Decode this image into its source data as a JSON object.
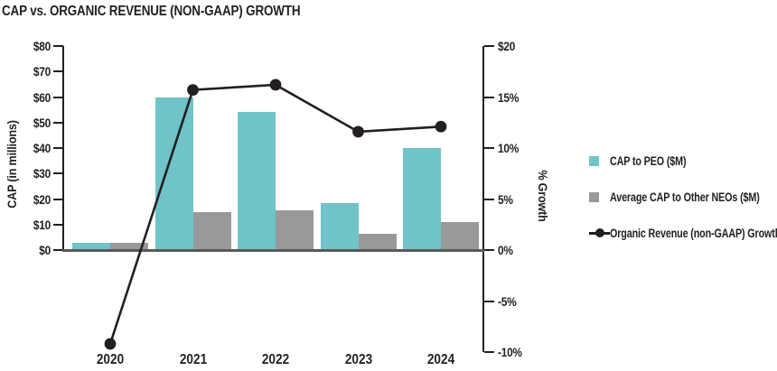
{
  "title": "CAP vs. ORGANIC REVENUE (NON-GAAP) GROWTH",
  "chart_data": {
    "type": "combo-bar-line",
    "title": "CAP vs. ORGANIC REVENUE (NON-GAAP) GROWTH",
    "categories": [
      "2020",
      "2021",
      "2022",
      "2023",
      "2024"
    ],
    "series": [
      {
        "name": "CAP to PEO ($M)",
        "type": "bar",
        "axis": "left",
        "color": "#70C3C7",
        "values": [
          2.7,
          60,
          54,
          18.5,
          40
        ]
      },
      {
        "name": "Average CAP to Other NEOs ($M)",
        "type": "bar",
        "axis": "left",
        "color": "#98999B",
        "values": [
          3,
          15,
          15.5,
          6.5,
          11
        ]
      },
      {
        "name": "Organic Revenue (non-GAAP) Growth",
        "type": "line",
        "axis": "right",
        "color": "#231F20",
        "values": [
          -9.2,
          15.7,
          16.2,
          11.6,
          12.1
        ]
      }
    ],
    "left_axis": {
      "label": "CAP (in millions)",
      "tick_labels": [
        "$80",
        "$70",
        "$60",
        "$50",
        "$40",
        "$30",
        "$20",
        "$10",
        "$0"
      ],
      "tick_values": [
        80,
        70,
        60,
        50,
        40,
        30,
        20,
        10,
        0
      ],
      "min": 0,
      "max": 80
    },
    "right_axis": {
      "label": "% Growth",
      "tick_labels": [
        "$20",
        "15%",
        "10%",
        "5%",
        "0%",
        "-5%",
        "-10%"
      ],
      "tick_values": [
        20,
        15,
        10,
        5,
        0,
        -5,
        -10
      ],
      "min": -10,
      "max": 20
    },
    "grid": false,
    "legend_position": "right"
  },
  "colors": {
    "teal": "#70C3C7",
    "gray": "#98999B",
    "line": "#231F20",
    "axis": "#231F20",
    "baseline": "#58595B",
    "background": "#FFFFFF"
  }
}
